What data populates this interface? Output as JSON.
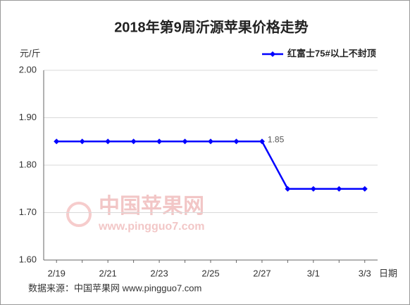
{
  "chart_data": {
    "type": "line",
    "title": "2018年第9周沂源苹果价格走势",
    "y_label": "元/斤",
    "x_label": "日期",
    "source": "数据来源：中国苹果网 www.pingguo7.com",
    "watermark": [
      "中国苹果网",
      "www.pingguo7.com"
    ],
    "categories": [
      "2/19",
      null,
      "2/21",
      null,
      "2/23",
      null,
      "2/25",
      null,
      "2/27",
      null,
      "3/1",
      null,
      "3/3"
    ],
    "series": [
      {
        "name": "红富士75#以上不封顶",
        "color": "#0000ff",
        "values": [
          1.85,
          1.85,
          1.85,
          1.85,
          1.85,
          1.85,
          1.85,
          1.85,
          1.85,
          1.75,
          1.75,
          1.75,
          1.75
        ]
      }
    ],
    "ylim": [
      1.6,
      2.0
    ],
    "yticks": [
      {
        "value": 1.6,
        "label": "1.60"
      },
      {
        "value": 1.7,
        "label": "1.70"
      },
      {
        "value": 1.8,
        "label": "1.80"
      },
      {
        "value": 1.9,
        "label": "1.90"
      },
      {
        "value": 2.0,
        "label": "2.00"
      }
    ],
    "grid": true,
    "legend": "top-right"
  }
}
